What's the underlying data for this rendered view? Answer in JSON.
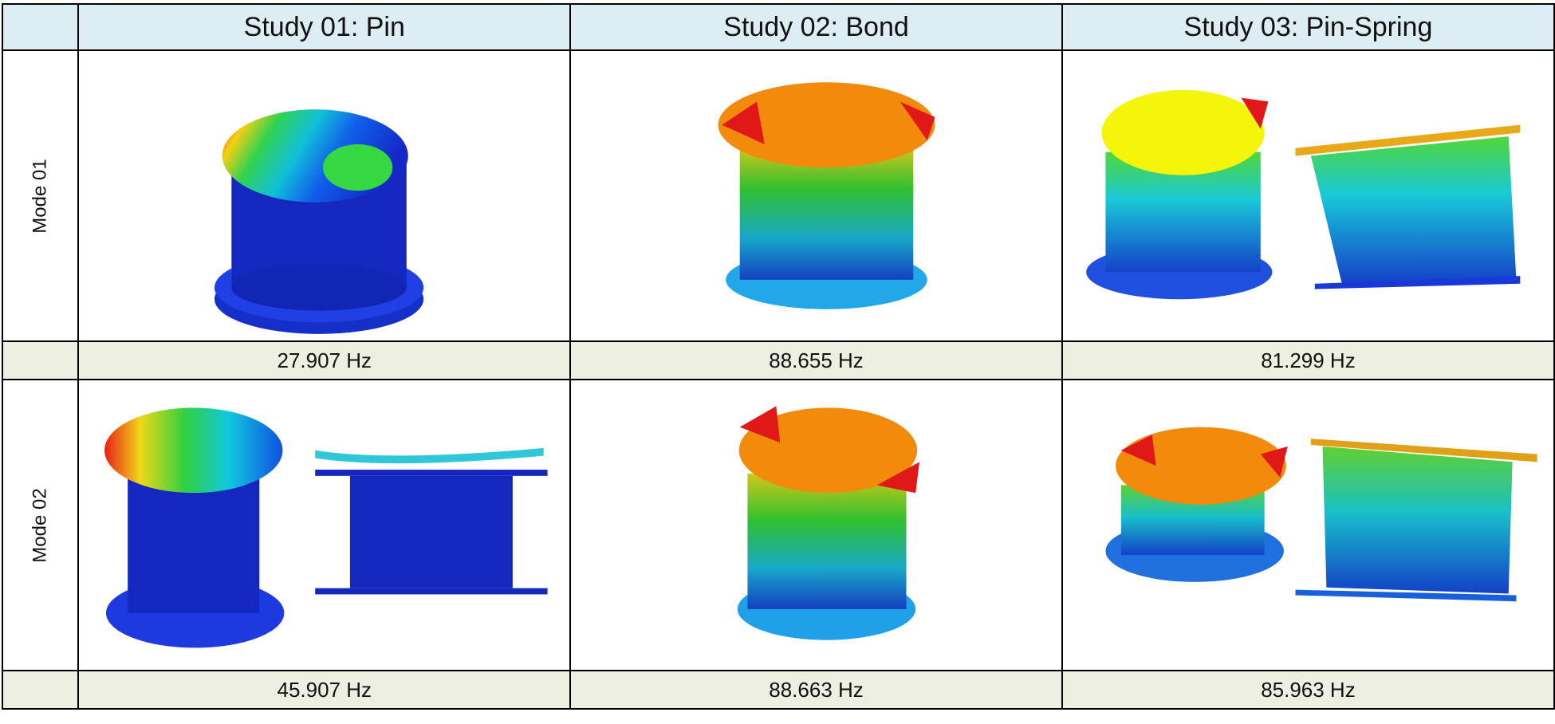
{
  "columns": [
    {
      "label": "Study 01: Pin"
    },
    {
      "label": "Study 02: Bond"
    },
    {
      "label": "Study 03: Pin-Spring"
    }
  ],
  "rows": [
    {
      "label": "Mode 01",
      "frequencies": [
        "27.907 Hz",
        "88.655 Hz",
        "81.299 Hz"
      ]
    },
    {
      "label": "Mode 02",
      "frequencies": [
        "45.907 Hz",
        "88.663 Hz",
        "85.963 Hz"
      ]
    }
  ],
  "colors": {
    "header_bg": "#dcedf3",
    "freq_bg": "#edefe1",
    "contour_low": "#1a23c8",
    "contour_high": "#e31a1a",
    "contour_mid": "#11c811"
  }
}
